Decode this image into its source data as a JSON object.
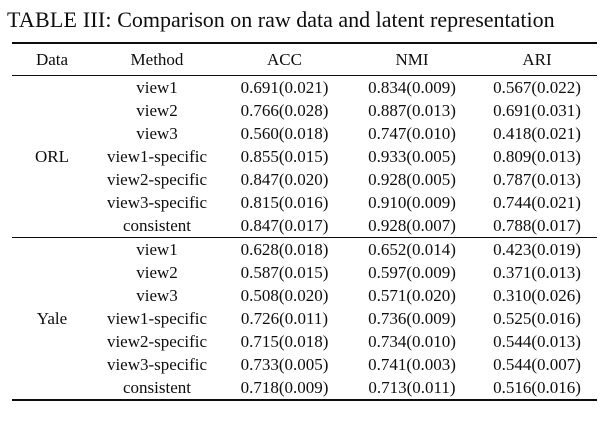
{
  "caption": {
    "label": "TABLE III:",
    "text": " Comparison on raw data and latent representation"
  },
  "chart_data": {
    "type": "table",
    "columns": [
      "Data",
      "Method",
      "ACC",
      "NMI",
      "ARI"
    ],
    "groups": [
      {
        "data": "ORL",
        "rows": [
          {
            "method": "view1",
            "acc": "0.691(0.021)",
            "nmi": "0.834(0.009)",
            "ari": "0.567(0.022)"
          },
          {
            "method": "view2",
            "acc": "0.766(0.028)",
            "nmi": "0.887(0.013)",
            "ari": "0.691(0.031)"
          },
          {
            "method": "view3",
            "acc": "0.560(0.018)",
            "nmi": "0.747(0.010)",
            "ari": "0.418(0.021)"
          },
          {
            "method": "view1-specific",
            "acc": "0.855(0.015)",
            "nmi": "0.933(0.005)",
            "ari": "0.809(0.013)"
          },
          {
            "method": "view2-specific",
            "acc": "0.847(0.020)",
            "nmi": "0.928(0.005)",
            "ari": "0.787(0.013)"
          },
          {
            "method": "view3-specific",
            "acc": "0.815(0.016)",
            "nmi": "0.910(0.009)",
            "ari": "0.744(0.021)"
          },
          {
            "method": "consistent",
            "acc": "0.847(0.017)",
            "nmi": "0.928(0.007)",
            "ari": "0.788(0.017)"
          }
        ]
      },
      {
        "data": "Yale",
        "rows": [
          {
            "method": "view1",
            "acc": "0.628(0.018)",
            "nmi": "0.652(0.014)",
            "ari": "0.423(0.019)"
          },
          {
            "method": "view2",
            "acc": "0.587(0.015)",
            "nmi": "0.597(0.009)",
            "ari": "0.371(0.013)"
          },
          {
            "method": "view3",
            "acc": "0.508(0.020)",
            "nmi": "0.571(0.020)",
            "ari": "0.310(0.026)"
          },
          {
            "method": "view1-specific",
            "acc": "0.726(0.011)",
            "nmi": "0.736(0.009)",
            "ari": "0.525(0.016)"
          },
          {
            "method": "view2-specific",
            "acc": "0.715(0.018)",
            "nmi": "0.734(0.010)",
            "ari": "0.544(0.013)"
          },
          {
            "method": "view3-specific",
            "acc": "0.733(0.005)",
            "nmi": "0.741(0.003)",
            "ari": "0.544(0.007)"
          },
          {
            "method": "consistent",
            "acc": "0.718(0.009)",
            "nmi": "0.713(0.011)",
            "ari": "0.516(0.016)"
          }
        ]
      }
    ]
  }
}
